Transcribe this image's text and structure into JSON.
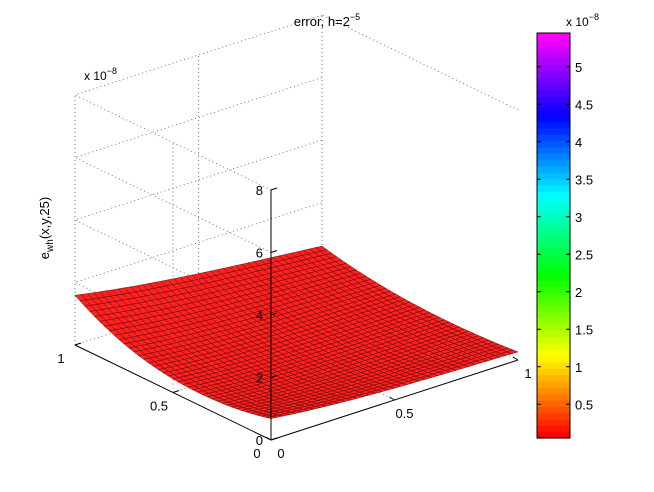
{
  "chart_data": {
    "type": "surface",
    "title": "error, h=2",
    "title_exponent": "−5",
    "zlabel_main": "e",
    "zlabel_sub": "wh",
    "zlabel_tail": "(x,y,25)",
    "zscale_label": "x 10",
    "zscale_exponent": "−8",
    "xlim": [
      0,
      1
    ],
    "ylim": [
      0,
      1
    ],
    "zlim": [
      0,
      8
    ],
    "xticks": [
      "0",
      "0.5",
      "1"
    ],
    "yticks": [
      "0",
      "0.5",
      "1"
    ],
    "zticks": [
      "0",
      "2",
      "4",
      "6",
      "8"
    ],
    "grid": true,
    "surface_color": "#ff2020",
    "edge_color": "#3a0000",
    "surface_description": "error surface, max about 5.4e-8 near the y=1 / x=0 corner, trough along y near 0.35",
    "colorbar": {
      "scale_label": "x 10",
      "scale_exponent": "−8",
      "ticks": [
        "0.5",
        "1",
        "1.5",
        "2",
        "2.5",
        "3",
        "3.5",
        "4",
        "4.5",
        "5"
      ],
      "range": [
        0.05,
        5.45
      ],
      "colormap": "hsv"
    }
  }
}
